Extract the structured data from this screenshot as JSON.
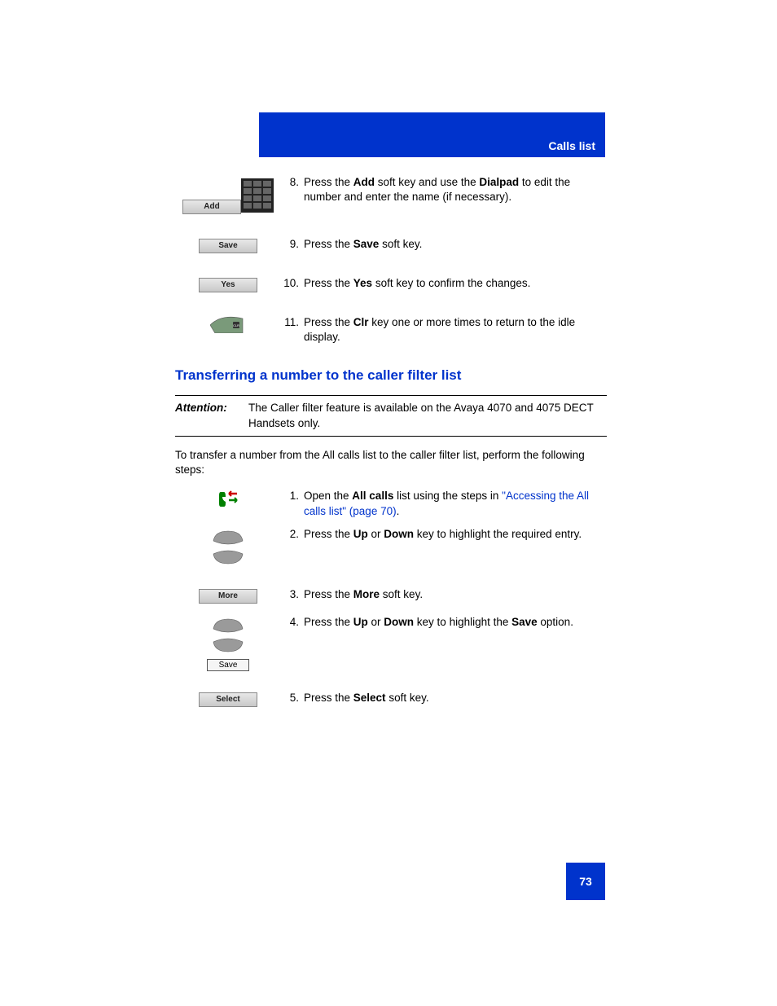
{
  "header": {
    "section_title": "Calls list",
    "bg_color": "#0033cc"
  },
  "top_steps": [
    {
      "num": "8.",
      "icons": [
        {
          "type": "softkey",
          "label": "Add"
        },
        {
          "type": "keypad"
        }
      ],
      "parts": [
        "Press the ",
        {
          "b": "Add"
        },
        " soft key and use the ",
        {
          "b": "Dialpad"
        },
        " to edit the number and enter the name (if necessary)."
      ]
    },
    {
      "num": "9.",
      "icons": [
        {
          "type": "softkey",
          "label": "Save"
        }
      ],
      "parts": [
        "Press the ",
        {
          "b": "Save"
        },
        " soft key."
      ]
    },
    {
      "num": "10.",
      "icons": [
        {
          "type": "softkey",
          "label": "Yes"
        }
      ],
      "parts": [
        "Press the ",
        {
          "b": "Yes"
        },
        " soft key to confirm the changes."
      ]
    },
    {
      "num": "11.",
      "icons": [
        {
          "type": "clr"
        }
      ],
      "parts": [
        "Press the ",
        {
          "b": "Clr"
        },
        " key one or more times to return to the idle display."
      ]
    }
  ],
  "heading": "Transferring a number to the caller filter list",
  "attention": {
    "label": "Attention:",
    "text": "The Caller filter feature is available on the Avaya 4070 and 4075 DECT Handsets only."
  },
  "intro": "To transfer a number from the All calls list to the caller filter list, perform the following steps:",
  "bottom_steps": [
    {
      "num": "1.",
      "icons": [
        {
          "type": "calls-icon"
        }
      ],
      "parts": [
        "Open the ",
        {
          "b": "All calls"
        },
        " list using the steps in ",
        {
          "link": "\"Accessing the All calls list\" (page 70)"
        },
        "."
      ]
    },
    {
      "num": "2.",
      "icons": [
        {
          "type": "nav-up"
        },
        {
          "type": "nav-down"
        }
      ],
      "parts": [
        "Press the ",
        {
          "b": "Up"
        },
        " or ",
        {
          "b": "Down"
        },
        " key to highlight the required entry."
      ]
    },
    {
      "num": "3.",
      "icons": [
        {
          "type": "softkey",
          "label": "More"
        }
      ],
      "parts": [
        "Press the ",
        {
          "b": "More"
        },
        " soft key."
      ]
    },
    {
      "num": "4.",
      "icons": [
        {
          "type": "nav-up"
        },
        {
          "type": "nav-down"
        },
        {
          "type": "option",
          "label": "Save"
        }
      ],
      "parts": [
        "Press the ",
        {
          "b": "Up"
        },
        " or ",
        {
          "b": "Down"
        },
        " key to highlight the ",
        {
          "b": "Save"
        },
        " option."
      ]
    },
    {
      "num": "5.",
      "icons": [
        {
          "type": "softkey",
          "label": "Select"
        }
      ],
      "parts": [
        "Press the ",
        {
          "b": "Select"
        },
        " soft key."
      ]
    }
  ],
  "page_number": "73"
}
